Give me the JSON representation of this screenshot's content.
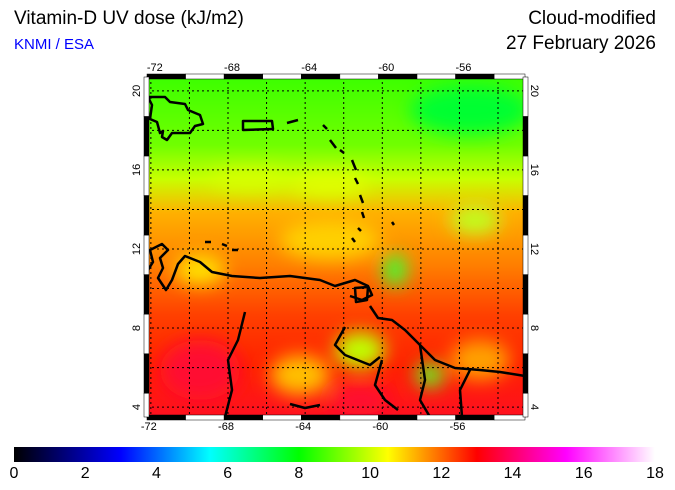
{
  "header": {
    "title": "Vitamin-D UV dose (kJ/m2)",
    "organisation": "KNMI / ESA",
    "mode": "Cloud-modified",
    "date": "27 February 2026"
  },
  "map": {
    "region": "Caribbean",
    "lon_labels_top": [
      "-72",
      "-68",
      "-64",
      "-60",
      "-56"
    ],
    "lon_labels_bottom": [
      "-72",
      "-68",
      "-64",
      "-60",
      "-56"
    ],
    "lat_labels_left": [
      "20",
      "16",
      "12",
      "8",
      "4"
    ],
    "lat_labels_right": [
      "20",
      "16",
      "12",
      "8",
      "4"
    ],
    "lon_range": [
      -72.2,
      -52.6
    ],
    "lat_range": [
      3.5,
      20.7
    ],
    "grid_step_deg": 2
  },
  "colorbar": {
    "labels": [
      "0",
      "2",
      "4",
      "6",
      "8",
      "10",
      "12",
      "14",
      "16",
      "18"
    ],
    "range": [
      0,
      18
    ],
    "stops": [
      "#000000",
      "#0000ff",
      "#00ffff",
      "#00ff00",
      "#ffff00",
      "#ff0000",
      "#ff00ff",
      "#ffffff"
    ]
  }
}
